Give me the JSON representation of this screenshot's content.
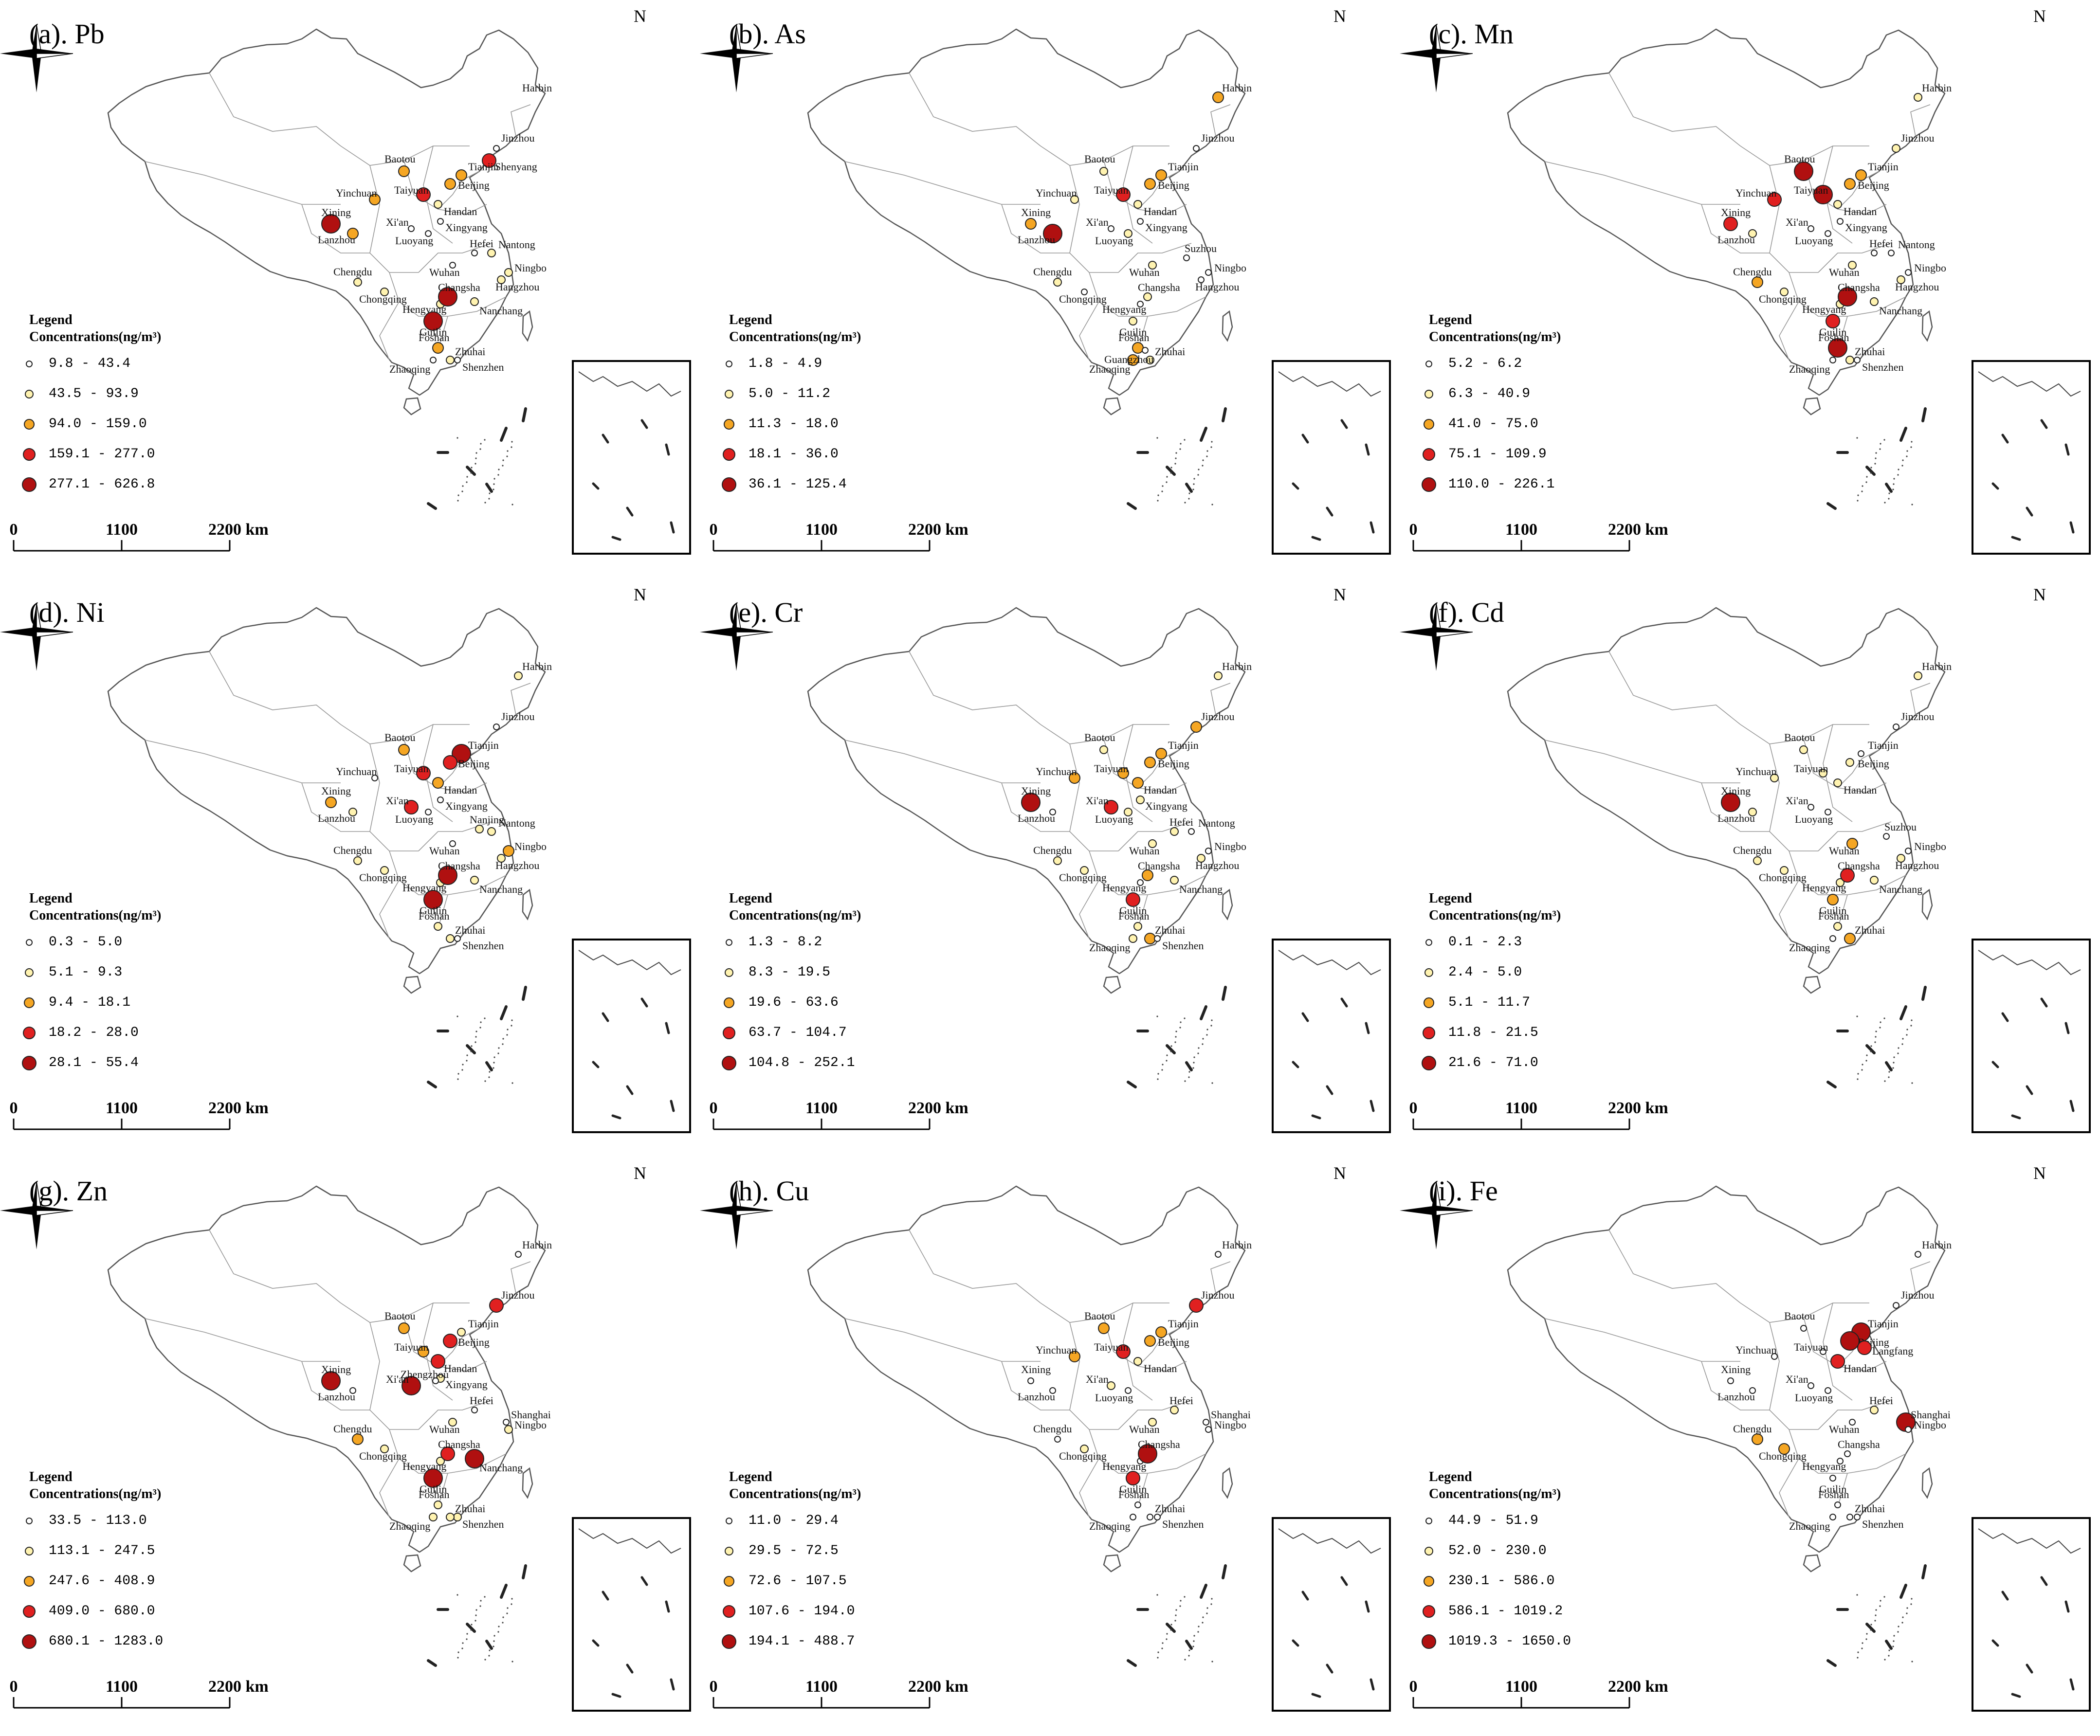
{
  "figure": {
    "legend_title": "Legend",
    "legend_subtitle": "Concentrations(ng/m³)",
    "north_label": "N",
    "scale_labels": [
      "0",
      "1100",
      "2200 km"
    ],
    "colors": {
      "class1": "#ffffff",
      "class2": "#fff3b0",
      "class3": "#f5a623",
      "class4": "#e02020",
      "class5": "#b01010",
      "outline": "#555555",
      "frame": "#000000"
    },
    "panels": [
      {
        "title": "(a). Pb",
        "classes": [
          "9.8 - 43.4",
          "43.5 - 93.9",
          "94.0 - 159.0",
          "159.1 - 277.0",
          "277.1 - 626.8"
        ],
        "cities": [
          [
            "Harbin",
            0
          ],
          [
            "Jinzhou",
            1
          ],
          [
            "Shenyang",
            4
          ],
          [
            "Tianjin",
            3
          ],
          [
            "Beijing",
            3
          ],
          [
            "Baotou",
            3
          ],
          [
            "Yinchuan",
            3
          ],
          [
            "Taiyuan",
            4
          ],
          [
            "Handan",
            2
          ],
          [
            "Xining",
            5
          ],
          [
            "Lanzhou",
            3
          ],
          [
            "Xi'an",
            1
          ],
          [
            "Xingyang",
            1
          ],
          [
            "Luoyang",
            1
          ],
          [
            "Hefei",
            1
          ],
          [
            "Nantong",
            2
          ],
          [
            "Wuhan",
            1
          ],
          [
            "Ningbo",
            2
          ],
          [
            "Hangzhou",
            2
          ],
          [
            "Chengdu",
            2
          ],
          [
            "Chongqing",
            2
          ],
          [
            "Hengyang",
            2
          ],
          [
            "Changsha",
            5
          ],
          [
            "Nanchang",
            2
          ],
          [
            "Guilin",
            5
          ],
          [
            "Foshan",
            3
          ],
          [
            "Zhuhai",
            2
          ],
          [
            "Zhaoqing",
            1
          ],
          [
            "Shenzhen",
            1
          ]
        ]
      },
      {
        "title": "(b). As",
        "classes": [
          "1.8 - 4.9",
          "5.0 - 11.2",
          "11.3 - 18.0",
          "18.1 - 36.0",
          "36.1 - 125.4"
        ],
        "cities": [
          [
            "Harbin",
            3
          ],
          [
            "Jinzhou",
            1
          ],
          [
            "Tianjin",
            3
          ],
          [
            "Beijing",
            3
          ],
          [
            "Baotou",
            2
          ],
          [
            "Yinchuan",
            2
          ],
          [
            "Taiyuan",
            4
          ],
          [
            "Handan",
            2
          ],
          [
            "Xining",
            3
          ],
          [
            "Lanzhou",
            5
          ],
          [
            "Xi'an",
            1
          ],
          [
            "Xingyang",
            1
          ],
          [
            "Luoyang",
            2
          ],
          [
            "Suzhou",
            1
          ],
          [
            "Wuhan",
            2
          ],
          [
            "Ningbo",
            1
          ],
          [
            "Hangzhou",
            1
          ],
          [
            "Chengdu",
            2
          ],
          [
            "Chongqing",
            1
          ],
          [
            "Changsha",
            2
          ],
          [
            "Hengyang",
            1
          ],
          [
            "Guilin",
            2
          ],
          [
            "Zhaoqing",
            3
          ],
          [
            "Foshan",
            3
          ],
          [
            "Zhuhai",
            2
          ],
          [
            "Guangzhou",
            1
          ]
        ]
      },
      {
        "title": "(c). Mn",
        "classes": [
          "5.2 - 6.2",
          "6.3 - 40.9",
          "41.0 - 75.0",
          "75.1 - 109.9",
          "110.0 - 226.1"
        ],
        "cities": [
          [
            "Harbin",
            2
          ],
          [
            "Jinzhou",
            2
          ],
          [
            "Baotou",
            5
          ],
          [
            "Tianjin",
            3
          ],
          [
            "Beijing",
            3
          ],
          [
            "Yinchuan",
            4
          ],
          [
            "Taiyuan",
            5
          ],
          [
            "Handan",
            2
          ],
          [
            "Xining",
            4
          ],
          [
            "Lanzhou",
            2
          ],
          [
            "Xi'an",
            1
          ],
          [
            "Xingyang",
            1
          ],
          [
            "Luoyang",
            1
          ],
          [
            "Hefei",
            1
          ],
          [
            "Nantong",
            1
          ],
          [
            "Wuhan",
            2
          ],
          [
            "Ningbo",
            1
          ],
          [
            "Hangzhou",
            2
          ],
          [
            "Chengdu",
            3
          ],
          [
            "Chongqing",
            2
          ],
          [
            "Hengyang",
            2
          ],
          [
            "Changsha",
            5
          ],
          [
            "Nanchang",
            2
          ],
          [
            "Guilin",
            4
          ],
          [
            "Foshan",
            5
          ],
          [
            "Zhuhai",
            2
          ],
          [
            "Zhaoqing",
            1
          ],
          [
            "Shenzhen",
            1
          ]
        ]
      },
      {
        "title": "(d). Ni",
        "classes": [
          "0.3 - 5.0",
          "5.1 - 9.3",
          "9.4 - 18.1",
          "18.2 - 28.0",
          "28.1 - 55.4"
        ],
        "cities": [
          [
            "Harbin",
            2
          ],
          [
            "Jinzhou",
            1
          ],
          [
            "Tianjin",
            5
          ],
          [
            "Beijing",
            4
          ],
          [
            "Baotou",
            3
          ],
          [
            "Yinchuan",
            1
          ],
          [
            "Taiyuan",
            4
          ],
          [
            "Handan",
            3
          ],
          [
            "Xining",
            3
          ],
          [
            "Lanzhou",
            2
          ],
          [
            "Xi'an",
            4
          ],
          [
            "Xingyang",
            1
          ],
          [
            "Luoyang",
            1
          ],
          [
            "Nanjing",
            2
          ],
          [
            "Nantong",
            2
          ],
          [
            "Wuhan",
            1
          ],
          [
            "Ningbo",
            3
          ],
          [
            "Hangzhou",
            2
          ],
          [
            "Chengdu",
            2
          ],
          [
            "Chongqing",
            2
          ],
          [
            "Hengyang",
            2
          ],
          [
            "Changsha",
            5
          ],
          [
            "Nanchang",
            2
          ],
          [
            "Guilin",
            5
          ],
          [
            "Foshan",
            2
          ],
          [
            "Zhuhai",
            2
          ],
          [
            "Shenzhen",
            1
          ]
        ]
      },
      {
        "title": "(e). Cr",
        "classes": [
          "1.3 - 8.2",
          "8.3 - 19.5",
          "19.6 - 63.6",
          "63.7 - 104.7",
          "104.8 - 252.1"
        ],
        "cities": [
          [
            "Harbin",
            2
          ],
          [
            "Jinzhou",
            3
          ],
          [
            "Baotou",
            2
          ],
          [
            "Tianjin",
            3
          ],
          [
            "Beijing",
            3
          ],
          [
            "Yinchuan",
            3
          ],
          [
            "Taiyuan",
            3
          ],
          [
            "Handan",
            3
          ],
          [
            "Xingyang",
            2
          ],
          [
            "Xining",
            5
          ],
          [
            "Lanzhou",
            1
          ],
          [
            "Xi'an",
            4
          ],
          [
            "Luoyang",
            2
          ],
          [
            "Hefei",
            2
          ],
          [
            "Nantong",
            1
          ],
          [
            "Wuhan",
            2
          ],
          [
            "Ningbo",
            1
          ],
          [
            "Hangzhou",
            2
          ],
          [
            "Chengdu",
            2
          ],
          [
            "Chongqing",
            2
          ],
          [
            "Hengyang",
            1
          ],
          [
            "Changsha",
            3
          ],
          [
            "Nanchang",
            2
          ],
          [
            "Guilin",
            4
          ],
          [
            "Foshan",
            2
          ],
          [
            "Zhuhai",
            3
          ],
          [
            "Zhaoqing",
            2
          ],
          [
            "Shenzhen",
            1
          ]
        ]
      },
      {
        "title": "(f). Cd",
        "classes": [
          "0.1 - 2.3",
          "2.4 - 5.0",
          "5.1 - 11.7",
          "11.8 - 21.5",
          "21.6 - 71.0"
        ],
        "cities": [
          [
            "Harbin",
            2
          ],
          [
            "Jinzhou",
            1
          ],
          [
            "Baotou",
            2
          ],
          [
            "Beijing",
            2
          ],
          [
            "Tianjin",
            1
          ],
          [
            "Yinchuan",
            2
          ],
          [
            "Taiyuan",
            2
          ],
          [
            "Handan",
            2
          ],
          [
            "Xining",
            5
          ],
          [
            "Lanzhou",
            2
          ],
          [
            "Xi'an",
            1
          ],
          [
            "Luoyang",
            1
          ],
          [
            "Suzhou",
            1
          ],
          [
            "Ningbo",
            1
          ],
          [
            "Hangzhou",
            2
          ],
          [
            "Wuhan",
            3
          ],
          [
            "Chengdu",
            2
          ],
          [
            "Chongqing",
            2
          ],
          [
            "Hengyang",
            2
          ],
          [
            "Changsha",
            4
          ],
          [
            "Nanchang",
            2
          ],
          [
            "Guilin",
            3
          ],
          [
            "Foshan",
            2
          ],
          [
            "Zhuhai",
            3
          ],
          [
            "Zhaoqing",
            1
          ]
        ]
      },
      {
        "title": "(g). Zn",
        "classes": [
          "33.5 - 113.0",
          "113.1 - 247.5",
          "247.6 - 408.9",
          "409.0 - 680.0",
          "680.1 - 1283.0"
        ],
        "cities": [
          [
            "Harbin",
            1
          ],
          [
            "Jinzhou",
            4
          ],
          [
            "Baotou",
            3
          ],
          [
            "Tianjin",
            2
          ],
          [
            "Beijing",
            4
          ],
          [
            "Taiyuan",
            3
          ],
          [
            "Handan",
            4
          ],
          [
            "Xingyang",
            2
          ],
          [
            "Xining",
            5
          ],
          [
            "Lanzhou",
            1
          ],
          [
            "Xi'an",
            5
          ],
          [
            "Zhengzhou",
            1
          ],
          [
            "Hefei",
            1
          ],
          [
            "Shanghai",
            1
          ],
          [
            "Wuhan",
            2
          ],
          [
            "Ningbo",
            2
          ],
          [
            "Chengdu",
            3
          ],
          [
            "Chongqing",
            2
          ],
          [
            "Hengyang",
            2
          ],
          [
            "Changsha",
            4
          ],
          [
            "Nanchang",
            5
          ],
          [
            "Guilin",
            5
          ],
          [
            "Shenzhen",
            2
          ],
          [
            "Zhuhai",
            2
          ],
          [
            "Zhaoqing",
            2
          ],
          [
            "Foshan",
            2
          ]
        ]
      },
      {
        "title": "(h). Cu",
        "classes": [
          "11.0 - 29.4",
          "29.5 - 72.5",
          "72.6 - 107.5",
          "107.6 - 194.0",
          "194.1 - 488.7"
        ],
        "cities": [
          [
            "Harbin",
            1
          ],
          [
            "Jinzhou",
            4
          ],
          [
            "Baotou",
            3
          ],
          [
            "Tianjin",
            3
          ],
          [
            "Beijing",
            3
          ],
          [
            "Yinchuan",
            3
          ],
          [
            "Taiyuan",
            4
          ],
          [
            "Handan",
            2
          ],
          [
            "Xining",
            1
          ],
          [
            "Lanzhou",
            1
          ],
          [
            "Xi'an",
            2
          ],
          [
            "Luoyang",
            1
          ],
          [
            "Hefei",
            2
          ],
          [
            "Shanghai",
            1
          ],
          [
            "Wuhan",
            2
          ],
          [
            "Ningbo",
            1
          ],
          [
            "Chengdu",
            1
          ],
          [
            "Chongqing",
            2
          ],
          [
            "Hengyang",
            1
          ],
          [
            "Changsha",
            5
          ],
          [
            "Guilin",
            4
          ],
          [
            "Foshan",
            1
          ],
          [
            "Zhuhai",
            1
          ],
          [
            "Zhaoqing",
            1
          ],
          [
            "Shenzhen",
            1
          ]
        ]
      },
      {
        "title": "(i). Fe",
        "classes": [
          "44.9 - 51.9",
          "52.0 - 230.0",
          "230.1 - 586.0",
          "586.1 - 1019.2",
          "1019.3 - 1650.0"
        ],
        "cities": [
          [
            "Harbin",
            1
          ],
          [
            "Jinzhou",
            1
          ],
          [
            "Baotou",
            1
          ],
          [
            "Tianjin",
            5
          ],
          [
            "Beijing",
            5
          ],
          [
            "Langfang",
            4
          ],
          [
            "Yinchuan",
            1
          ],
          [
            "Taiyuan",
            1
          ],
          [
            "Handan",
            4
          ],
          [
            "Xining",
            1
          ],
          [
            "Lanzhou",
            1
          ],
          [
            "Xi'an",
            1
          ],
          [
            "Luoyang",
            1
          ],
          [
            "Hefei",
            2
          ],
          [
            "Shanghai",
            5
          ],
          [
            "Ningbo",
            1
          ],
          [
            "Wuhan",
            1
          ],
          [
            "Chengdu",
            3
          ],
          [
            "Chongqing",
            3
          ],
          [
            "Hengyang",
            1
          ],
          [
            "Changsha",
            1
          ],
          [
            "Guilin",
            1
          ],
          [
            "Foshan",
            1
          ],
          [
            "Zhuhai",
            1
          ],
          [
            "Zhaoqing",
            1
          ],
          [
            "Shenzhen",
            1
          ]
        ]
      }
    ]
  }
}
